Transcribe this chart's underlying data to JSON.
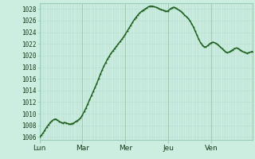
{
  "background_color": "#cceee0",
  "grid_color_minor": "#b8ddd0",
  "grid_color_major": "#99ccbb",
  "line_color": "#1a5c1a",
  "ylim": [
    1005.5,
    1029.0
  ],
  "yticks": [
    1006,
    1008,
    1010,
    1012,
    1014,
    1016,
    1018,
    1020,
    1022,
    1024,
    1026,
    1028
  ],
  "day_labels": [
    "Lun",
    "Mar",
    "Mer",
    "Jeu",
    "Ven"
  ],
  "day_positions": [
    0,
    24,
    48,
    72,
    96
  ],
  "total_points": 120,
  "pressure_values": [
    1006.0,
    1006.3,
    1006.7,
    1007.2,
    1007.7,
    1008.1,
    1008.5,
    1008.8,
    1009.0,
    1009.1,
    1008.9,
    1008.7,
    1008.5,
    1008.4,
    1008.5,
    1008.4,
    1008.3,
    1008.2,
    1008.3,
    1008.4,
    1008.6,
    1008.8,
    1009.0,
    1009.3,
    1009.8,
    1010.4,
    1011.0,
    1011.7,
    1012.4,
    1013.1,
    1013.8,
    1014.5,
    1015.2,
    1016.0,
    1016.8,
    1017.5,
    1018.2,
    1018.8,
    1019.4,
    1019.9,
    1020.4,
    1020.8,
    1021.2,
    1021.6,
    1022.0,
    1022.4,
    1022.8,
    1023.2,
    1023.7,
    1024.2,
    1024.7,
    1025.2,
    1025.7,
    1026.2,
    1026.6,
    1027.0,
    1027.3,
    1027.6,
    1027.8,
    1028.0,
    1028.2,
    1028.4,
    1028.5,
    1028.5,
    1028.4,
    1028.3,
    1028.2,
    1028.0,
    1027.9,
    1027.8,
    1027.7,
    1027.6,
    1027.7,
    1028.0,
    1028.2,
    1028.3,
    1028.2,
    1028.0,
    1027.8,
    1027.6,
    1027.3,
    1027.0,
    1026.7,
    1026.4,
    1026.0,
    1025.5,
    1024.9,
    1024.2,
    1023.5,
    1022.8,
    1022.2,
    1021.8,
    1021.5,
    1021.5,
    1021.7,
    1022.0,
    1022.2,
    1022.3,
    1022.2,
    1022.0,
    1021.8,
    1021.5,
    1021.2,
    1020.9,
    1020.6,
    1020.5,
    1020.6,
    1020.8,
    1021.0,
    1021.2,
    1021.3,
    1021.2,
    1021.0,
    1020.8,
    1020.6,
    1020.5,
    1020.4,
    1020.5,
    1020.6,
    1020.7
  ]
}
